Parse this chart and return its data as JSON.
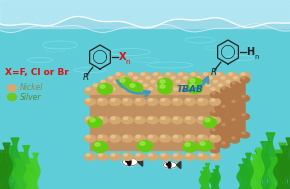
{
  "bg_color": "#5ecdd8",
  "wave_color": "#a8eaf0",
  "wave_color2": "#c5f2f8",
  "legend_nickel_color": "#d4a870",
  "legend_silver_color": "#6cc820",
  "legend_nickel_label": "Nickel",
  "legend_silver_label": "Silver",
  "xeq_text": "X=F, Cl or Br",
  "xeq_color": "#dd1111",
  "tbab_text": "TBAB",
  "arrow_color": "#4499bb",
  "ni_color": "#d4a870",
  "ni_highlight": "#e8c898",
  "ni_shadow": "#b8885a",
  "ag_color": "#66cc11",
  "ag_highlight": "#aaee55",
  "slab_top_color": "#d4a870",
  "slab_front_color": "#c09060",
  "slab_right_color": "#b07848",
  "seaweed_colors": [
    "#22aa22",
    "#33bb22",
    "#44cc22",
    "#228811"
  ],
  "fish_white": "#ffffff",
  "fish_black": "#111111",
  "water_caustic_color": "#9aeeff"
}
